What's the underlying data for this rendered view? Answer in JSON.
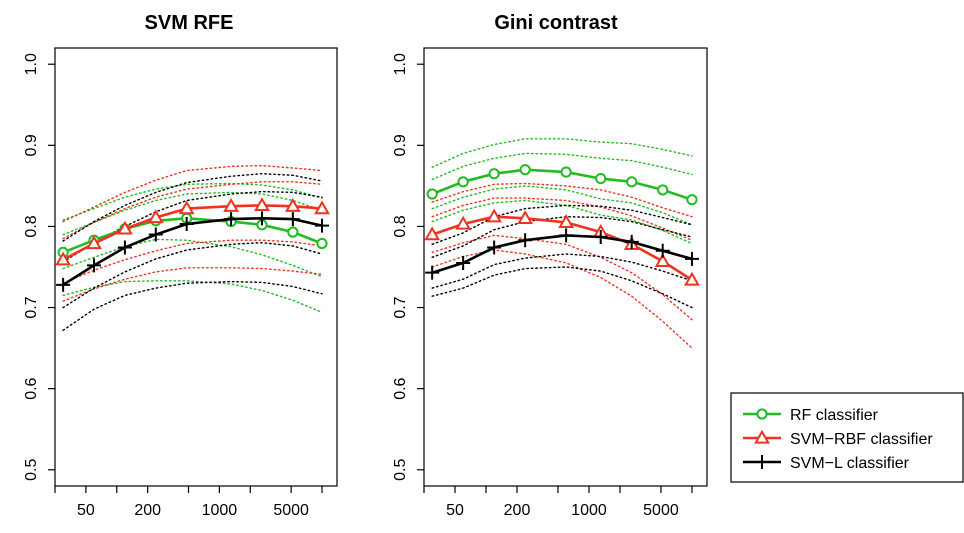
{
  "colors": {
    "RF": "#22bb22",
    "SVM-RBF": "#ee3322",
    "SVM-L": "#000000"
  },
  "legend": {
    "entries": [
      {
        "label": "RF classifier",
        "color": "#22bb22",
        "marker": "circle"
      },
      {
        "label": "SVM−RBF classifier",
        "color": "#ee3322",
        "marker": "triangle"
      },
      {
        "label": "SVM−L classifier",
        "color": "#000000",
        "marker": "plus"
      }
    ]
  },
  "chart_data": [
    {
      "type": "line",
      "title": "SVM RFE",
      "xlabel": "",
      "ylabel": "",
      "xscale": "log",
      "xlim": [
        25,
        14000
      ],
      "ylim": [
        0.48,
        1.02
      ],
      "x_ticks": [
        25,
        50,
        100,
        200,
        500,
        1000,
        2000,
        5000,
        10000
      ],
      "x_tick_labels": [
        "",
        "50",
        "",
        "200",
        "",
        "1000",
        "",
        "5000",
        ""
      ],
      "y_ticks": [
        0.5,
        0.6,
        0.7,
        0.8,
        0.9,
        1.0
      ],
      "y_tick_labels": [
        "0.5",
        "0.6",
        "0.7",
        "0.8",
        "0.9",
        "1.0"
      ],
      "x": [
        30,
        60,
        120,
        240,
        480,
        1300,
        2600,
        5200,
        10000
      ],
      "series": [
        {
          "name": "RF classifier",
          "marker": "circle",
          "values": [
            0.768,
            0.783,
            0.797,
            0.807,
            0.81,
            0.806,
            0.802,
            0.793,
            0.779
          ],
          "band_inner": {
            "upper": [
              0.79,
              0.805,
              0.82,
              0.832,
              0.84,
              0.842,
              0.84,
              0.832,
              0.82
            ],
            "lower": [
              0.748,
              0.762,
              0.775,
              0.784,
              0.783,
              0.775,
              0.765,
              0.752,
              0.738
            ]
          },
          "band_outer": {
            "upper": [
              0.808,
              0.822,
              0.836,
              0.846,
              0.852,
              0.853,
              0.851,
              0.845,
              0.835
            ],
            "lower": [
              0.715,
              0.725,
              0.732,
              0.733,
              0.733,
              0.729,
              0.721,
              0.709,
              0.694
            ]
          }
        },
        {
          "name": "SVM−RBF classifier",
          "marker": "triangle",
          "values": [
            0.759,
            0.779,
            0.797,
            0.811,
            0.822,
            0.825,
            0.826,
            0.825,
            0.822
          ],
          "band_inner": {
            "upper": [
              0.785,
              0.805,
              0.822,
              0.836,
              0.846,
              0.852,
              0.855,
              0.855,
              0.852
            ],
            "lower": [
              0.73,
              0.746,
              0.759,
              0.77,
              0.779,
              0.783,
              0.783,
              0.781,
              0.776
            ]
          },
          "band_outer": {
            "upper": [
              0.806,
              0.824,
              0.842,
              0.857,
              0.869,
              0.874,
              0.875,
              0.872,
              0.869
            ],
            "lower": [
              0.708,
              0.723,
              0.735,
              0.744,
              0.749,
              0.749,
              0.748,
              0.745,
              0.741
            ]
          }
        },
        {
          "name": "SVM−L classifier",
          "marker": "plus",
          "values": [
            0.728,
            0.752,
            0.774,
            0.79,
            0.803,
            0.809,
            0.81,
            0.809,
            0.801
          ],
          "band_inner": {
            "upper": [
              0.756,
              0.78,
              0.8,
              0.818,
              0.832,
              0.84,
              0.843,
              0.842,
              0.836
            ],
            "lower": [
              0.7,
              0.724,
              0.744,
              0.76,
              0.771,
              0.778,
              0.78,
              0.776,
              0.766
            ]
          },
          "band_outer": {
            "upper": [
              0.782,
              0.806,
              0.826,
              0.842,
              0.854,
              0.862,
              0.865,
              0.863,
              0.856
            ],
            "lower": [
              0.672,
              0.698,
              0.715,
              0.724,
              0.73,
              0.732,
              0.731,
              0.726,
              0.717
            ]
          }
        }
      ]
    },
    {
      "type": "line",
      "title": "Gini contrast",
      "xlabel": "",
      "ylabel": "",
      "xscale": "log",
      "xlim": [
        25,
        14000
      ],
      "ylim": [
        0.48,
        1.02
      ],
      "x_ticks": [
        25,
        50,
        100,
        200,
        500,
        1000,
        2000,
        5000,
        10000
      ],
      "x_tick_labels": [
        "",
        "50",
        "",
        "200",
        "",
        "1000",
        "",
        "5000",
        ""
      ],
      "y_ticks": [
        0.5,
        0.6,
        0.7,
        0.8,
        0.9,
        1.0
      ],
      "y_tick_labels": [
        "0.5",
        "0.6",
        "0.7",
        "0.8",
        "0.9",
        "1.0"
      ],
      "x": [
        30,
        60,
        120,
        240,
        600,
        1300,
        2600,
        5200,
        10000
      ],
      "series": [
        {
          "name": "RF classifier",
          "marker": "circle",
          "values": [
            0.84,
            0.855,
            0.865,
            0.87,
            0.867,
            0.859,
            0.855,
            0.845,
            0.833
          ],
          "band_inner": {
            "upper": [
              0.858,
              0.874,
              0.884,
              0.89,
              0.889,
              0.884,
              0.881,
              0.873,
              0.864
            ],
            "lower": [
              0.822,
              0.836,
              0.846,
              0.85,
              0.845,
              0.834,
              0.829,
              0.817,
              0.802
            ]
          },
          "band_outer": {
            "upper": [
              0.873,
              0.89,
              0.901,
              0.908,
              0.908,
              0.904,
              0.902,
              0.895,
              0.887
            ],
            "lower": [
              0.806,
              0.82,
              0.829,
              0.832,
              0.826,
              0.814,
              0.808,
              0.795,
              0.779
            ]
          }
        },
        {
          "name": "SVM−RBF classifier",
          "marker": "triangle",
          "values": [
            0.79,
            0.803,
            0.812,
            0.81,
            0.805,
            0.793,
            0.778,
            0.757,
            0.734
          ],
          "band_inner": {
            "upper": [
              0.812,
              0.826,
              0.835,
              0.835,
              0.832,
              0.824,
              0.813,
              0.798,
              0.783
            ],
            "lower": [
              0.768,
              0.78,
              0.789,
              0.785,
              0.778,
              0.762,
              0.743,
              0.716,
              0.685
            ]
          },
          "band_outer": {
            "upper": [
              0.83,
              0.843,
              0.852,
              0.853,
              0.85,
              0.845,
              0.836,
              0.823,
              0.812
            ],
            "lower": [
              0.75,
              0.763,
              0.771,
              0.766,
              0.755,
              0.737,
              0.714,
              0.683,
              0.65
            ]
          }
        },
        {
          "name": "SVM−L classifier",
          "marker": "plus",
          "values": [
            0.743,
            0.755,
            0.774,
            0.783,
            0.789,
            0.787,
            0.781,
            0.77,
            0.76
          ],
          "band_inner": {
            "upper": [
              0.762,
              0.776,
              0.796,
              0.806,
              0.812,
              0.811,
              0.806,
              0.796,
              0.787
            ],
            "lower": [
              0.724,
              0.735,
              0.753,
              0.761,
              0.766,
              0.763,
              0.756,
              0.745,
              0.733
            ]
          },
          "band_outer": {
            "upper": [
              0.778,
              0.792,
              0.812,
              0.822,
              0.826,
              0.825,
              0.82,
              0.811,
              0.802
            ],
            "lower": [
              0.714,
              0.724,
              0.74,
              0.748,
              0.75,
              0.745,
              0.733,
              0.717,
              0.7
            ]
          }
        }
      ]
    }
  ]
}
